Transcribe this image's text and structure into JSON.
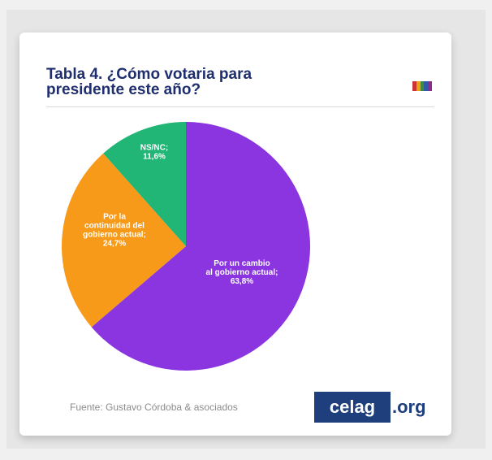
{
  "card": {
    "title_line1": "Tabla 4. ¿Cómo votaria para",
    "title_line2": "presidente este año?",
    "flag_colors": [
      "#cc3333",
      "#e8a317",
      "#3f8a3f",
      "#2e5aa8",
      "#8a2e8a"
    ],
    "source": "Fuente: Gustavo Córdoba & asociados",
    "logo_main": "celag",
    "logo_ext": ".org"
  },
  "chart_data": {
    "type": "pie",
    "slices": [
      {
        "label_lines": [
          "Por un cambio",
          "al gobierno actual;",
          "63,8%"
        ],
        "value": 63.8,
        "color": "#8a35e0"
      },
      {
        "label_lines": [
          "Por la",
          "continuidad del",
          "gobierno actual;",
          "24,7%"
        ],
        "value": 24.7,
        "color": "#f79a1a"
      },
      {
        "label_lines": [
          "NS/NC;",
          "11,6%"
        ],
        "value": 11.6,
        "color": "#21b576"
      }
    ],
    "start": "top",
    "direction": "clockwise"
  }
}
